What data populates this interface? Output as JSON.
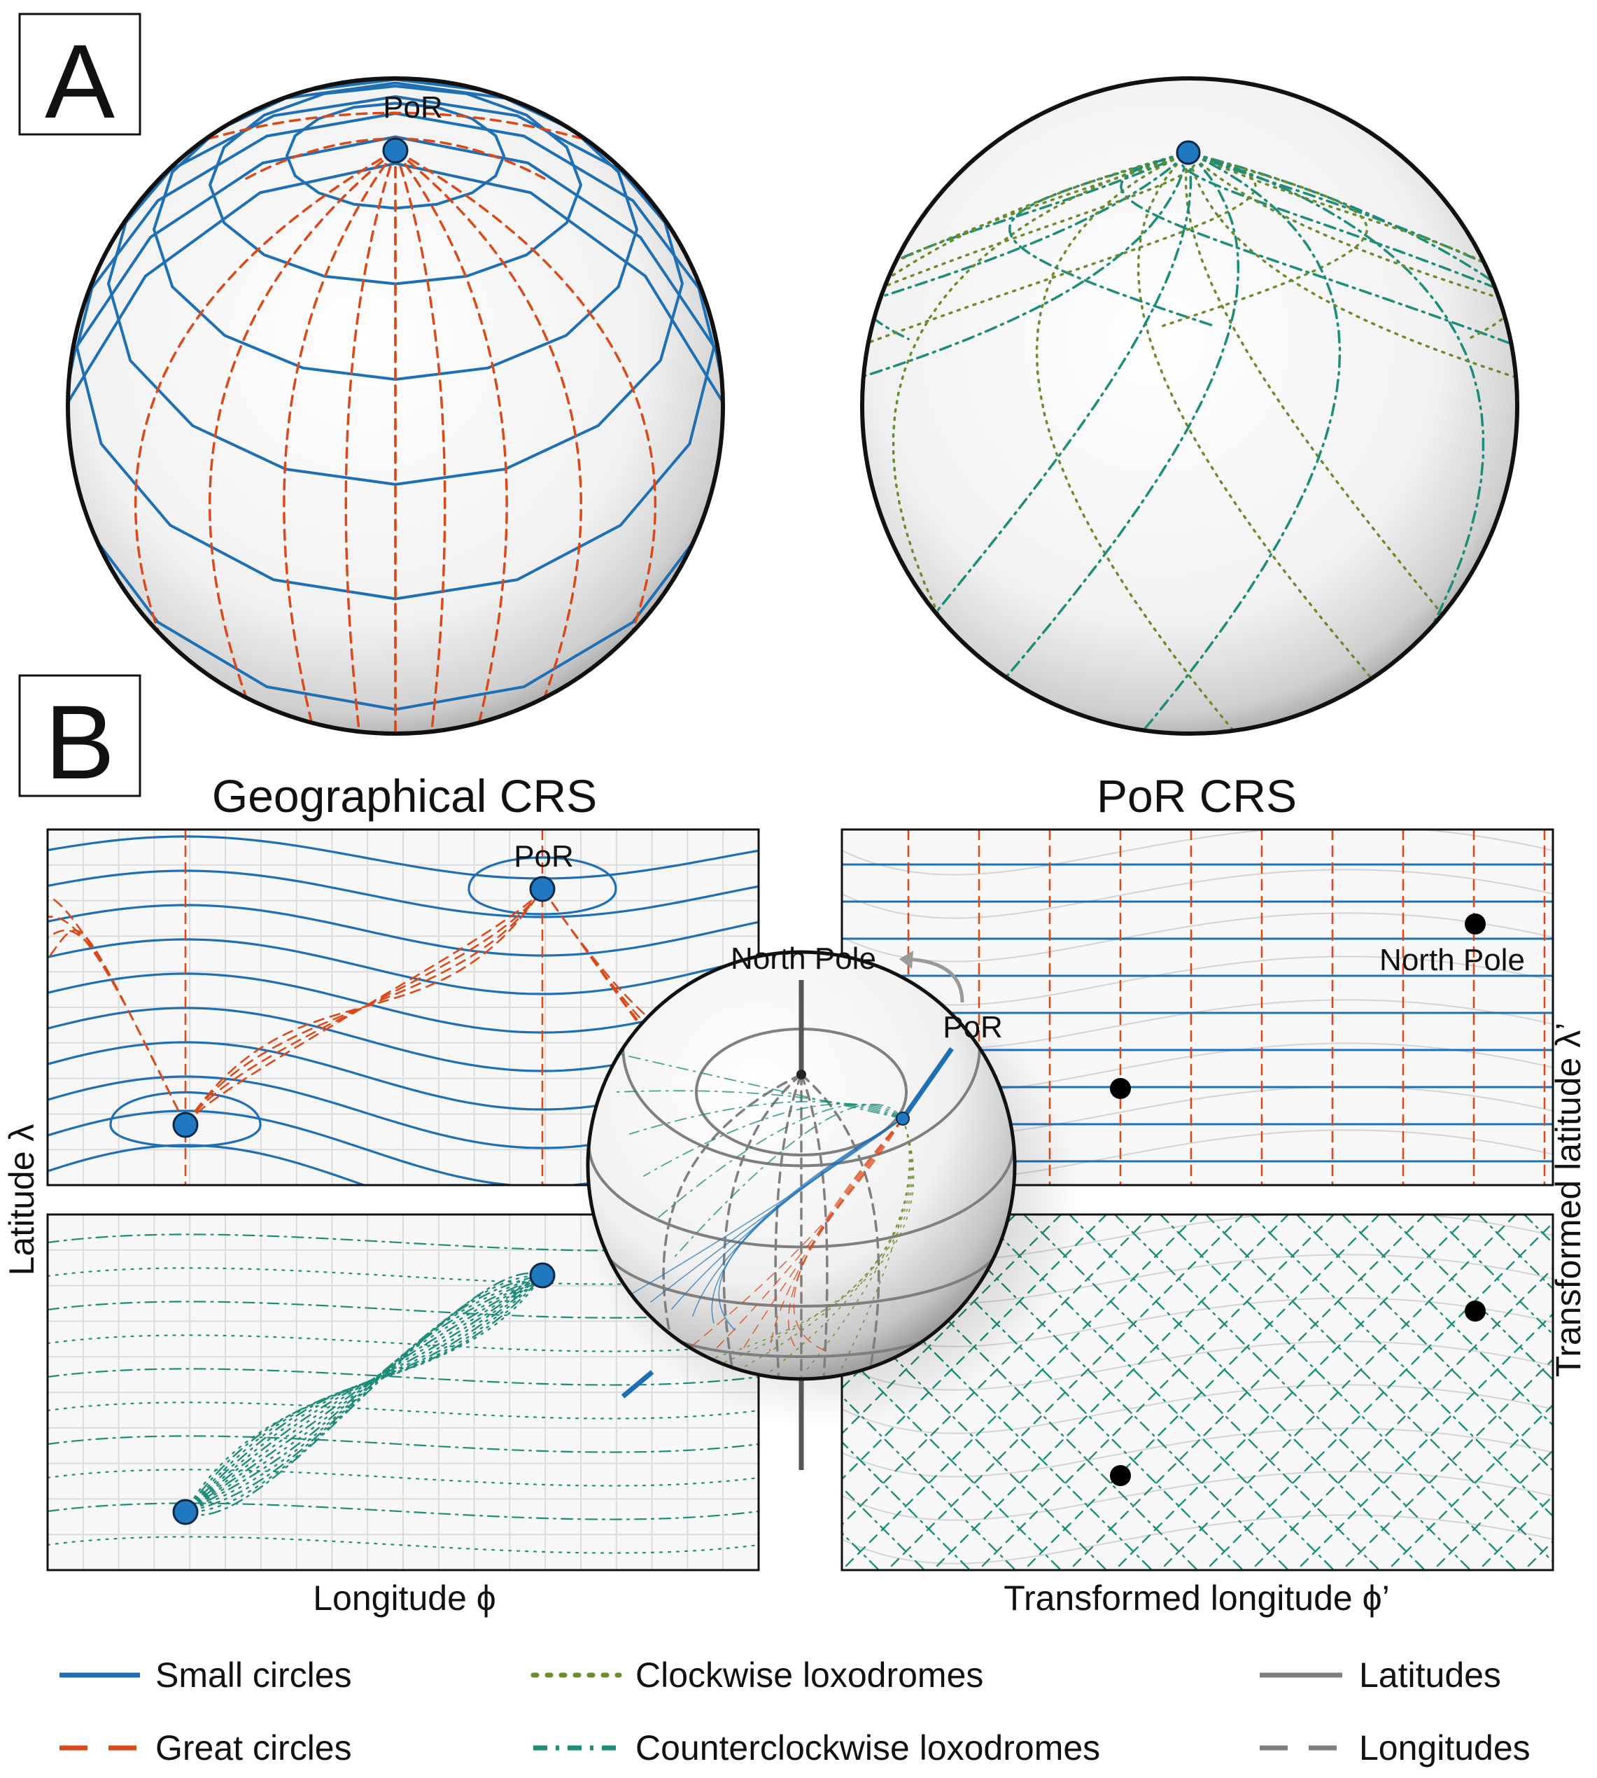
{
  "panels": {
    "a": {
      "label": "A",
      "por_label": "PoR"
    },
    "b": {
      "label": "B",
      "left_title": "Geographical CRS",
      "right_title": "PoR CRS",
      "por_label": "PoR",
      "north_pole_label": "North Pole",
      "globe_por_label": "PoR",
      "globe_north_pole_label": "North Pole",
      "x_label_left": "Longitude ϕ",
      "x_label_right": "Transformed longitude ϕ’",
      "y_label_left": "Latitude λ",
      "y_label_right": "Transformed latitude λ’"
    }
  },
  "legend": [
    {
      "label": "Small circles",
      "color": "#1f6fb4",
      "style": "solid"
    },
    {
      "label": "Great circles",
      "color": "#d94a1a",
      "style": "dashed"
    },
    {
      "label": "Clockwise loxodromes",
      "color": "#6b8c2c",
      "style": "dotted"
    },
    {
      "label": "Counterclockwise loxodromes",
      "color": "#1e8c78",
      "style": "dashdot"
    },
    {
      "label": "Latitudes",
      "color": "#7f7f7f",
      "style": "solid"
    },
    {
      "label": "Longitudes",
      "color": "#7f7f7f",
      "style": "dashed"
    }
  ],
  "colors": {
    "small_circle": "#1f6fb4",
    "great_circle": "#d94a1a",
    "cw_loxodrome": "#6b8c2c",
    "ccw_loxodrome": "#1e8c78",
    "graticule": "#7f7f7f",
    "por_dot": "#1f78c0",
    "pole_dot": "#000000"
  }
}
